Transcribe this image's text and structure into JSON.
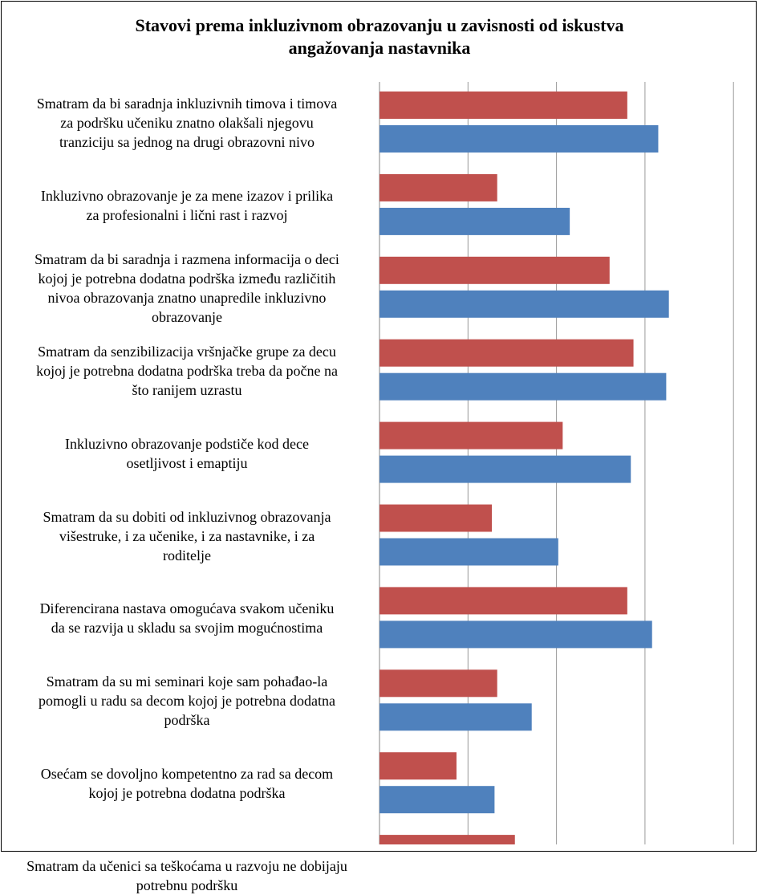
{
  "title": {
    "line1": "Stavovi prema inkluzivnom obrazovanju  u zavisnosti od iskustva",
    "line2": "angažovanja  nastavnika"
  },
  "chart_data": {
    "type": "bar",
    "orientation": "horizontal",
    "categories": [
      [
        "Smatram da bi saradnja inkluzivnih timova i timova",
        "za podršku učeniku znatno olakšali njegovu",
        "tranziciju sa jednog na drugi obrazovni nivo"
      ],
      [
        "Inkluzivno obrazovanje je za mene izazov i prilika",
        "za profesionalni i lični rast i razvoj"
      ],
      [
        "Smatram da bi saradnja i razmena informacija o deci",
        "kojoj je potrebna dodatna podrška između različitih",
        "nivoa obrazovanja znatno unapredile inkluzivno",
        "obrazovanje"
      ],
      [
        "Smatram da senzibilizacija vršnjačke grupe za decu",
        "kojoj je potrebna dodatna podrška treba da počne na",
        "što ranijem uzrastu"
      ],
      [
        "Inkluzivno obrazovanje podstiče kod dece",
        "osetljivost i emaptiju"
      ],
      [
        "Smatram da su dobiti od inkluzivnog obrazovanja",
        "višestruke, i za učenike, i za nastavnike, i za",
        "roditelje"
      ],
      [
        "Diferencirana nastava omogućava svakom učeniku",
        "da se razvija u skladu sa svojim mogućnostima"
      ],
      [
        "Smatram da su mi seminari koje sam pohađao-la",
        "pomogli u radu sa decom kojoj je potrebna dodatna",
        "podrška"
      ],
      [
        "Osećam se dovoljno kompetentno za rad sa decom",
        "kojoj je potrebna dodatna podrška"
      ],
      [
        "Smatram da učenici sa teškoćama u razvoju ne dobijaju potrebnu podršku"
      ]
    ],
    "series": [
      {
        "color": "#c0504d",
        "values": [
          2.8,
          1.33,
          2.6,
          2.87,
          2.07,
          1.27,
          2.8,
          1.33,
          0.87,
          1.53
        ]
      },
      {
        "color": "#4f81bd",
        "values": [
          3.15,
          2.15,
          3.27,
          3.24,
          2.84,
          2.02,
          3.08,
          1.72,
          1.3,
          0
        ]
      }
    ],
    "xlim": [
      0,
      4
    ],
    "grid": true
  }
}
